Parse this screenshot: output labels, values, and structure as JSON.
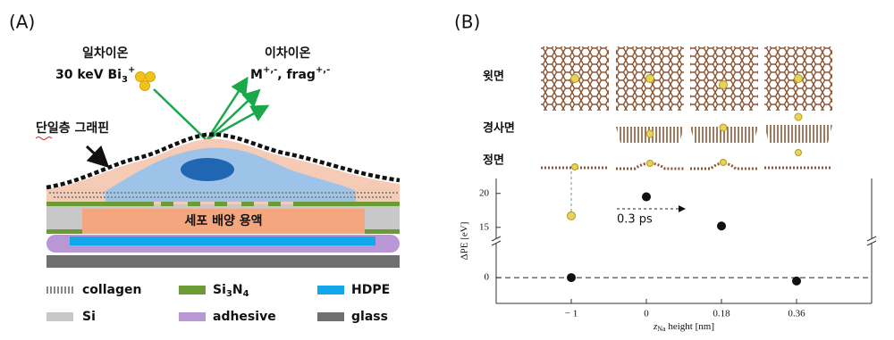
{
  "panel_a": {
    "label": "(A)",
    "primary_ion": {
      "title": "일차이온",
      "energy": "30 keV Bi",
      "subscript": "3",
      "superscript": "+"
    },
    "secondary_ion": {
      "title": "이차이온",
      "species": "M",
      "species_sup": "+,-",
      "frag": ", frag",
      "frag_sup": "+,-"
    },
    "graphene_label": "단일층 그래핀",
    "solution_label": "세포 배양 용액",
    "legend": {
      "collagen": "collagen",
      "sin": {
        "si": "Si",
        "si_sub": "3",
        "n": "N",
        "n_sub": "4"
      },
      "hdpe": "HDPE",
      "si": "Si",
      "adhesive": "adhesive",
      "glass": "glass"
    }
  },
  "panel_b": {
    "label": "(B)",
    "rows": [
      "윗면",
      "경사면",
      "정면"
    ]
  },
  "chart_data": {
    "type": "scatter",
    "categories": [
      "− 1",
      "0",
      "0.18",
      "0.36"
    ],
    "series": [
      {
        "color": "#111111",
        "values": [
          0,
          19.5,
          15.2,
          -0.5
        ]
      },
      {
        "color": "#e6d35c",
        "values": [
          16.7,
          null,
          null,
          null
        ]
      }
    ],
    "ylim": [
      -3.8,
      22.2
    ],
    "ybreak": [
      5.4,
      13
    ],
    "yticks": [
      0,
      15,
      20
    ],
    "ylabel": "ΔPE [eV]",
    "xlabel": {
      "symbol": "z",
      "subscript": "Na",
      "text": " height [nm]"
    },
    "hline": 0,
    "annotation": "0.3 ps"
  }
}
